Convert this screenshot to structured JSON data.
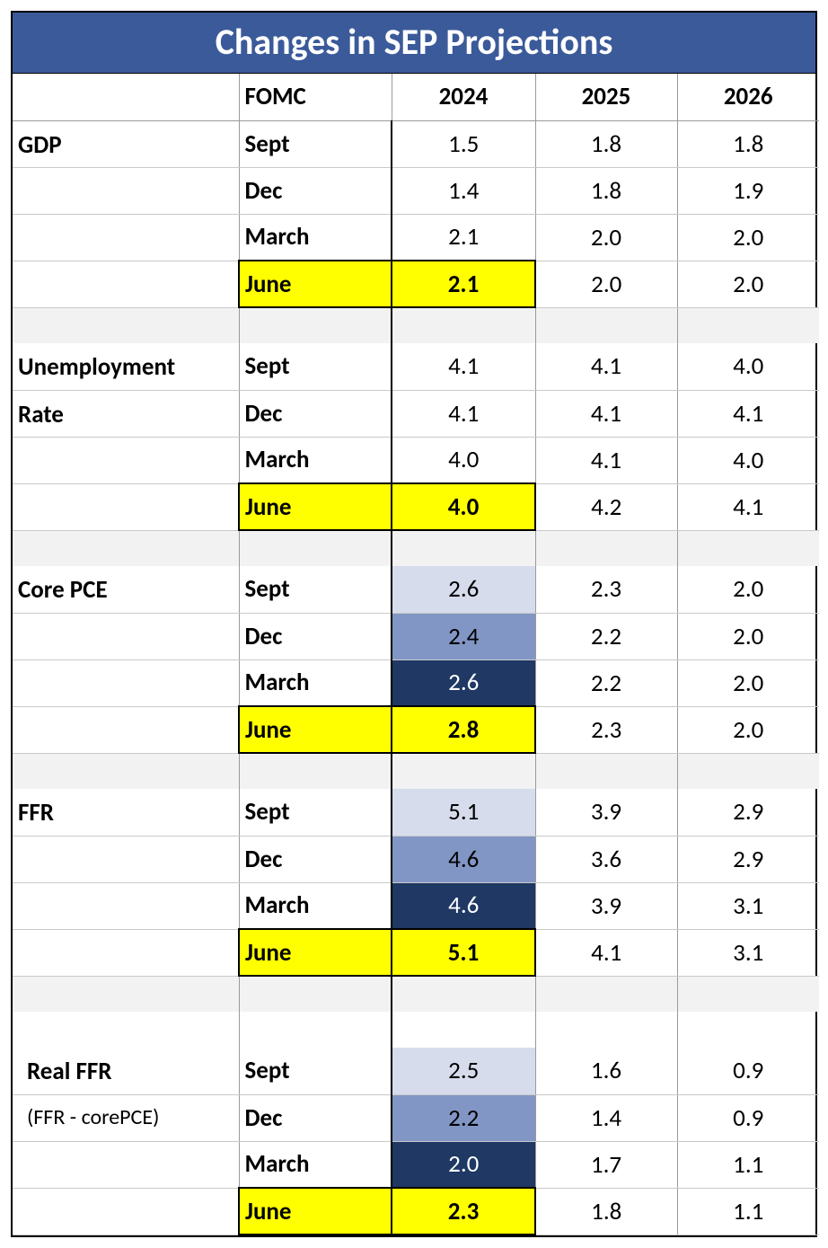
{
  "title": "Changes in SEP Projections",
  "colors": {
    "header_bg": "#3b5a9a",
    "header_fg": "#ffffff",
    "highlight": "#ffff00",
    "shade_light": "#d6dcec",
    "shade_mid": "#8196c5",
    "shade_dark": "#1f3864",
    "grid_light": "#c9c9c9",
    "grid_med": "#9a9a9a",
    "gap_bg": "#f2f2f2"
  },
  "fonts": {
    "title_pt": 40,
    "body_pt": 27,
    "sub_pt": 24
  },
  "header": {
    "fomc": "FOMC",
    "y24": "2024",
    "y25": "2025",
    "y26": "2026"
  },
  "metrics": [
    {
      "label": "GDP",
      "sub": "",
      "shaded2024": false,
      "rows": [
        {
          "fomc": "Sept",
          "v24": "1.5",
          "v25": "1.8",
          "v26": "1.8"
        },
        {
          "fomc": "Dec",
          "v24": "1.4",
          "v25": "1.8",
          "v26": "1.9"
        },
        {
          "fomc": "March",
          "v24": "2.1",
          "v25": "2.0",
          "v26": "2.0"
        },
        {
          "fomc": "June",
          "v24": "2.1",
          "v25": "2.0",
          "v26": "2.0",
          "highlight": true
        }
      ]
    },
    {
      "label": "Unemployment Rate",
      "sub": "",
      "shaded2024": false,
      "rows": [
        {
          "fomc": "Sept",
          "v24": "4.1",
          "v25": "4.1",
          "v26": "4.0"
        },
        {
          "fomc": "Dec",
          "v24": "4.1",
          "v25": "4.1",
          "v26": "4.1"
        },
        {
          "fomc": "March",
          "v24": "4.0",
          "v25": "4.1",
          "v26": "4.0"
        },
        {
          "fomc": "June",
          "v24": "4.0",
          "v25": "4.2",
          "v26": "4.1",
          "highlight": true
        }
      ]
    },
    {
      "label": "Core PCE",
      "sub": "",
      "shaded2024": true,
      "rows": [
        {
          "fomc": "Sept",
          "v24": "2.6",
          "v25": "2.3",
          "v26": "2.0"
        },
        {
          "fomc": "Dec",
          "v24": "2.4",
          "v25": "2.2",
          "v26": "2.0"
        },
        {
          "fomc": "March",
          "v24": "2.6",
          "v25": "2.2",
          "v26": "2.0"
        },
        {
          "fomc": "June",
          "v24": "2.8",
          "v25": "2.3",
          "v26": "2.0",
          "highlight": true
        }
      ]
    },
    {
      "label": "FFR",
      "sub": "",
      "shaded2024": true,
      "rows": [
        {
          "fomc": "Sept",
          "v24": "5.1",
          "v25": "3.9",
          "v26": "2.9"
        },
        {
          "fomc": "Dec",
          "v24": "4.6",
          "v25": "3.6",
          "v26": "2.9"
        },
        {
          "fomc": "March",
          "v24": "4.6",
          "v25": "3.9",
          "v26": "3.1"
        },
        {
          "fomc": "June",
          "v24": "5.1",
          "v25": "4.1",
          "v26": "3.1",
          "highlight": true
        }
      ]
    },
    {
      "label": "Real FFR",
      "sub": "(FFR - corePCE)",
      "shaded2024": true,
      "double_gap_before": true,
      "indent": true,
      "rows": [
        {
          "fomc": "Sept",
          "v24": "2.5",
          "v25": "1.6",
          "v26": "0.9"
        },
        {
          "fomc": "Dec",
          "v24": "2.2",
          "v25": "1.4",
          "v26": "0.9"
        },
        {
          "fomc": "March",
          "v24": "2.0",
          "v25": "1.7",
          "v26": "1.1"
        },
        {
          "fomc": "June",
          "v24": "2.3",
          "v25": "1.8",
          "v26": "1.1",
          "highlight": true
        }
      ]
    }
  ]
}
